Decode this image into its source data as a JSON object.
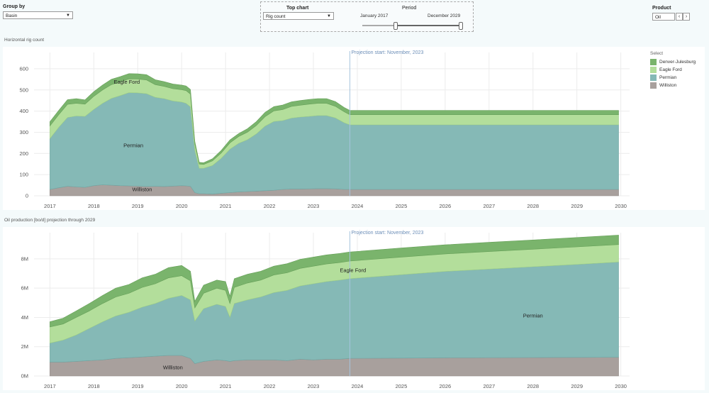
{
  "controls": {
    "group_by": {
      "label": "Group by",
      "value": "Basin"
    },
    "top_chart": {
      "label": "Top chart",
      "value": "Rig count"
    },
    "period": {
      "label": "Period",
      "start": "January 2017",
      "end": "December 2029"
    },
    "product": {
      "label": "Product",
      "value": "Oil",
      "prev": "‹",
      "next": "›"
    }
  },
  "legend": {
    "title": "Select",
    "items": [
      {
        "label": "Denver-Julesburg",
        "color": "#7ab46c"
      },
      {
        "label": "Eagle Ford",
        "color": "#b3de9b"
      },
      {
        "label": "Permian",
        "color": "#85b9b6"
      },
      {
        "label": "Williston",
        "color": "#a8a09d"
      }
    ]
  },
  "chart_data": [
    {
      "type": "area",
      "title": "Horizontal rig count",
      "annotation": "Projection start: November, 2023",
      "projection_start": 2023.83,
      "x_ticks": [
        "2017",
        "2018",
        "2019",
        "2020",
        "2021",
        "2022",
        "2023",
        "2024",
        "2025",
        "2026",
        "2027",
        "2028",
        "2029",
        "2030"
      ],
      "y_ticks": [
        "0",
        "100",
        "200",
        "300",
        "400",
        "500",
        "600"
      ],
      "ylim": [
        0,
        650
      ],
      "xlim": [
        2016.8,
        2030.2
      ],
      "x": [
        2017.0,
        2017.2,
        2017.4,
        2017.6,
        2017.8,
        2018.0,
        2018.2,
        2018.4,
        2018.6,
        2018.8,
        2019.0,
        2019.2,
        2019.4,
        2019.6,
        2019.8,
        2020.0,
        2020.1,
        2020.2,
        2020.3,
        2020.4,
        2020.5,
        2020.7,
        2020.9,
        2021.1,
        2021.3,
        2021.5,
        2021.7,
        2021.9,
        2022.1,
        2022.3,
        2022.5,
        2022.7,
        2022.9,
        2023.1,
        2023.3,
        2023.5,
        2023.7,
        2023.83,
        2024.5,
        2025.5,
        2026.5,
        2027.5,
        2028.5,
        2029.5,
        2029.95
      ],
      "series": [
        {
          "name": "Williston",
          "values": [
            30,
            38,
            45,
            42,
            40,
            48,
            52,
            50,
            48,
            47,
            46,
            44,
            45,
            44,
            46,
            48,
            47,
            45,
            15,
            10,
            10,
            8,
            12,
            15,
            18,
            20,
            22,
            24,
            26,
            30,
            32,
            32,
            33,
            34,
            34,
            33,
            30,
            30,
            30,
            30,
            30,
            30,
            30,
            30,
            30
          ]
        },
        {
          "name": "Permian",
          "values": [
            240,
            285,
            325,
            335,
            335,
            360,
            385,
            410,
            425,
            440,
            440,
            438,
            420,
            415,
            402,
            395,
            390,
            375,
            200,
            120,
            120,
            135,
            165,
            205,
            230,
            245,
            270,
            305,
            325,
            325,
            335,
            340,
            342,
            345,
            345,
            335,
            315,
            305,
            305,
            305,
            305,
            305,
            305,
            305,
            305
          ]
        },
        {
          "name": "Eagle Ford",
          "values": [
            60,
            60,
            62,
            60,
            58,
            62,
            63,
            65,
            65,
            65,
            65,
            65,
            60,
            58,
            58,
            58,
            60,
            60,
            30,
            20,
            18,
            22,
            25,
            30,
            32,
            36,
            40,
            45,
            50,
            52,
            55,
            56,
            58,
            58,
            58,
            55,
            52,
            48,
            48,
            48,
            48,
            48,
            48,
            48,
            48
          ]
        },
        {
          "name": "Denver-Julesburg",
          "values": [
            20,
            20,
            22,
            22,
            20,
            22,
            23,
            25,
            25,
            25,
            25,
            25,
            23,
            22,
            22,
            22,
            22,
            22,
            12,
            8,
            8,
            10,
            12,
            14,
            14,
            16,
            18,
            20,
            20,
            22,
            22,
            22,
            22,
            22,
            22,
            22,
            20,
            20,
            20,
            20,
            20,
            20,
            20,
            20,
            20
          ]
        }
      ],
      "labels": [
        {
          "text": "Eagle Ford",
          "x": 2018.75,
          "y": 530
        },
        {
          "text": "Permian",
          "x": 2018.9,
          "y": 230
        },
        {
          "text": "Williston",
          "x": 2019.1,
          "y": 22
        }
      ]
    },
    {
      "type": "area",
      "title": "Oil production [bo/d] projection through 2029",
      "annotation": "Projection start: November, 2023",
      "projection_start": 2023.83,
      "x_ticks": [
        "2017",
        "2018",
        "2019",
        "2020",
        "2021",
        "2022",
        "2023",
        "2024",
        "2025",
        "2026",
        "2027",
        "2028",
        "2029",
        "2030"
      ],
      "y_ticks": [
        "0M",
        "2M",
        "4M",
        "6M",
        "8M"
      ],
      "ylim": [
        0,
        9.4
      ],
      "xlim": [
        2016.8,
        2030.2
      ],
      "x": [
        2017.0,
        2017.3,
        2017.6,
        2017.9,
        2018.2,
        2018.5,
        2018.8,
        2019.1,
        2019.4,
        2019.7,
        2020.0,
        2020.2,
        2020.3,
        2020.5,
        2020.8,
        2021.0,
        2021.1,
        2021.2,
        2021.5,
        2021.8,
        2022.1,
        2022.4,
        2022.7,
        2023.0,
        2023.3,
        2023.6,
        2023.83,
        2025.0,
        2026.0,
        2027.0,
        2028.0,
        2029.0,
        2029.95
      ],
      "series": [
        {
          "name": "Williston",
          "values": [
            0.95,
            0.95,
            1.0,
            1.05,
            1.1,
            1.2,
            1.25,
            1.3,
            1.35,
            1.4,
            1.4,
            1.2,
            0.85,
            1.0,
            1.1,
            1.05,
            1.0,
            1.05,
            1.1,
            1.1,
            1.1,
            1.05,
            1.15,
            1.1,
            1.15,
            1.15,
            1.2,
            1.22,
            1.24,
            1.25,
            1.26,
            1.27,
            1.28
          ]
        },
        {
          "name": "Permian",
          "values": [
            1.3,
            1.5,
            1.8,
            2.2,
            2.6,
            2.9,
            3.1,
            3.4,
            3.6,
            3.9,
            4.1,
            4.0,
            2.9,
            3.6,
            3.8,
            3.7,
            3.0,
            3.9,
            4.1,
            4.3,
            4.6,
            4.8,
            5.0,
            5.2,
            5.3,
            5.4,
            5.45,
            5.7,
            5.9,
            6.05,
            6.2,
            6.35,
            6.5
          ]
        },
        {
          "name": "Eagle Ford",
          "values": [
            1.1,
            1.1,
            1.2,
            1.2,
            1.25,
            1.3,
            1.3,
            1.35,
            1.35,
            1.4,
            1.35,
            1.3,
            0.9,
            1.05,
            1.1,
            1.1,
            0.95,
            1.1,
            1.15,
            1.15,
            1.2,
            1.2,
            1.2,
            1.2,
            1.2,
            1.2,
            1.2,
            1.2,
            1.2,
            1.2,
            1.2,
            1.2,
            1.2
          ]
        },
        {
          "name": "Denver-Julesburg",
          "values": [
            0.35,
            0.4,
            0.45,
            0.5,
            0.55,
            0.6,
            0.6,
            0.65,
            0.65,
            0.7,
            0.7,
            0.65,
            0.45,
            0.55,
            0.55,
            0.6,
            0.5,
            0.6,
            0.6,
            0.6,
            0.6,
            0.62,
            0.62,
            0.62,
            0.62,
            0.62,
            0.62,
            0.62,
            0.62,
            0.63,
            0.63,
            0.64,
            0.64
          ]
        }
      ],
      "labels": [
        {
          "text": "Eagle Ford",
          "x": 2023.9,
          "y": 7.1
        },
        {
          "text": "Permian",
          "x": 2028.0,
          "y": 4.0
        },
        {
          "text": "Williston",
          "x": 2019.8,
          "y": 0.45
        }
      ]
    }
  ]
}
